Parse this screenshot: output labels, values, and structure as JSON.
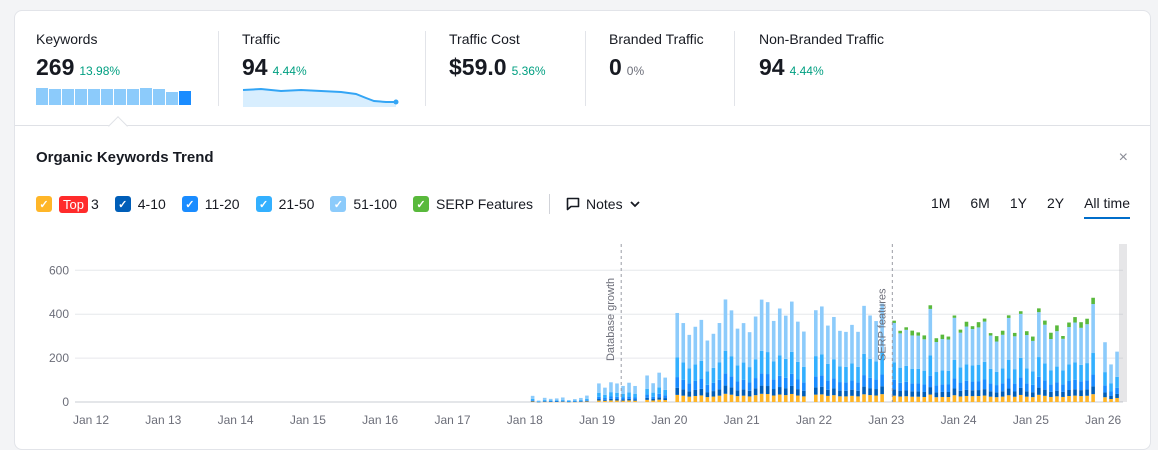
{
  "metrics": [
    {
      "label": "Keywords",
      "value": "269",
      "change": "13.98%"
    },
    {
      "label": "Traffic",
      "value": "94",
      "change": "4.44%"
    },
    {
      "label": "Traffic Cost",
      "value": "$59.0",
      "change": "5.36%"
    },
    {
      "label": "Branded Traffic",
      "value": "0",
      "change": "0%"
    },
    {
      "label": "Non-Branded Traffic",
      "value": "94",
      "change": "4.44%"
    }
  ],
  "panel": {
    "title": "Organic Keywords Trend",
    "close": "×"
  },
  "legend": {
    "top_badge": "Top",
    "top_num": "3",
    "items": [
      "4-10",
      "11-20",
      "21-50",
      "51-100",
      "SERP Features"
    ],
    "notes": "Notes"
  },
  "ranges": [
    "1M",
    "6M",
    "1Y",
    "2Y",
    "All time"
  ],
  "colors": {
    "top3": "#ffb628",
    "r4_10": "#005eb8",
    "r11_20": "#1a8cff",
    "r21_50": "#33b0ff",
    "r51_100": "#8ccbfb",
    "serp": "#59b93c",
    "accent": "#006dca"
  },
  "chart_data": {
    "type": "bar",
    "stacked": true,
    "x_ticks": [
      "Jan 12",
      "Jan 13",
      "Jan 14",
      "Jan 15",
      "Jan 16",
      "Jan 17",
      "Jan 18",
      "Jan 19",
      "Jan 20",
      "Jan 21",
      "Jan 22",
      "Jan 23",
      "Jan 24",
      "Jan 25",
      "Jan 26"
    ],
    "y_ticks": [
      "0",
      "200",
      "400",
      "600"
    ],
    "ylim": [
      0,
      700
    ],
    "annotations": [
      {
        "label": "Database growth",
        "at": "2019-05"
      },
      {
        "label": "SERP features",
        "at": "2023-02"
      }
    ],
    "series_names": [
      "Top 3",
      "4-10",
      "11-20",
      "21-50",
      "51-100",
      "SERP Features"
    ],
    "segments": [
      {
        "from": "2018-02",
        "to": "2018-12",
        "total": [
          5,
          30
        ],
        "serp": 0
      },
      {
        "from": "2019-01",
        "to": "2019-08",
        "total": [
          60,
          90
        ],
        "serp": 0
      },
      {
        "from": "2019-09",
        "to": "2020-01",
        "total": [
          50,
          160
        ],
        "serp": 0
      },
      {
        "from": "2020-02",
        "to": "2021-12",
        "total": [
          280,
          470
        ],
        "serp": 0
      },
      {
        "from": "2022-01",
        "to": "2023-01",
        "total": [
          300,
          470
        ],
        "serp": 0
      },
      {
        "from": "2023-02",
        "to": "2025-12",
        "total": [
          270,
          460
        ],
        "serp": [
          10,
          30
        ]
      },
      {
        "from": "2026-01",
        "to": "2026-04",
        "total": [
          150,
          300
        ],
        "serp": 0
      }
    ]
  },
  "chart_axis": {
    "y_ticks": [
      "0",
      "200",
      "400",
      "600"
    ],
    "x_ticks": [
      "Jan 12",
      "Jan 13",
      "Jan 14",
      "Jan 15",
      "Jan 16",
      "Jan 17",
      "Jan 18",
      "Jan 19",
      "Jan 20",
      "Jan 21",
      "Jan 22",
      "Jan 23",
      "Jan 24",
      "Jan 25",
      "Jan 26"
    ],
    "annotations": [
      "Database growth",
      "SERP features"
    ]
  }
}
